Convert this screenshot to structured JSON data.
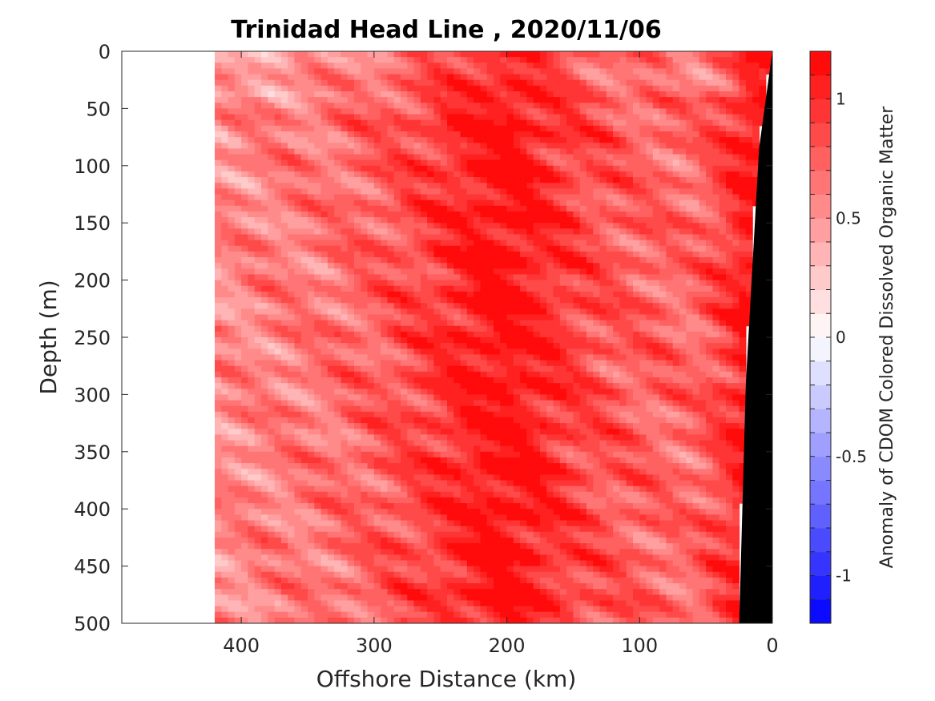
{
  "chart_data": {
    "type": "heatmap",
    "title": "Trinidad Head Line , 2020/11/06",
    "xlabel": "Offshore Distance (km)",
    "ylabel": "Depth (m)",
    "xlim": [
      490,
      0
    ],
    "ylim": [
      0,
      500
    ],
    "x_reversed": true,
    "y_reversed": true,
    "x_ticks": [
      400,
      300,
      200,
      100,
      0
    ],
    "y_ticks": [
      0,
      50,
      100,
      150,
      200,
      250,
      300,
      350,
      400,
      450,
      500
    ],
    "data_extent_x": [
      420,
      0
    ],
    "bathymetry": {
      "color": "#000000",
      "points": [
        [
          0,
          0
        ],
        [
          10,
          85
        ],
        [
          20,
          290
        ],
        [
          25,
          500
        ]
      ]
    },
    "colorbar": {
      "label": "Anomaly of CDOM Colored Dissolved Organic Matter",
      "clim": [
        -1.2,
        1.2
      ],
      "ticks": [
        1,
        0.5,
        0,
        -0.5,
        -1
      ],
      "tick_labels": [
        "1",
        "0.5",
        "0",
        "-0.5",
        "-1"
      ],
      "levels": 24,
      "low_color": "#0000ff",
      "mid_color": "#ffffff",
      "high_color": "#ff0000"
    },
    "field_summary": {
      "x_km": [
        420,
        380,
        340,
        300,
        260,
        220,
        200,
        180,
        140,
        100,
        60,
        30,
        20
      ],
      "mean_anomaly": [
        0.55,
        0.6,
        0.65,
        0.75,
        0.9,
        1.1,
        1.15,
        1.05,
        0.85,
        0.75,
        0.7,
        0.95,
        1.1
      ]
    }
  }
}
